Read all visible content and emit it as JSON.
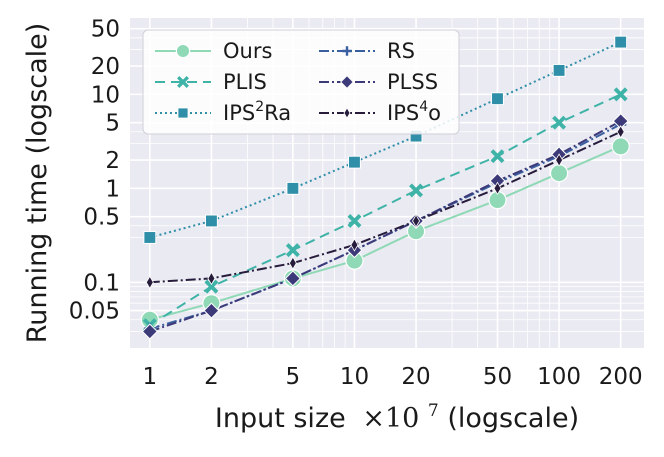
{
  "chart_data": {
    "type": "line",
    "xscale": "log",
    "yscale": "log",
    "x": [
      1,
      2,
      5,
      10,
      20,
      50,
      100,
      200
    ],
    "x_tick_labels": [
      "1",
      "2",
      "5",
      "10",
      "20",
      "50",
      "100",
      "200"
    ],
    "y_ticks": [
      0.05,
      0.1,
      0.5,
      1,
      2,
      5,
      10,
      20,
      50
    ],
    "y_tick_labels": [
      "0.05",
      "0.1",
      "0.5",
      "1",
      "2",
      "5",
      "10",
      "20",
      "50"
    ],
    "xlim": [
      0.8,
      260
    ],
    "ylim": [
      0.02,
      65
    ],
    "xlabel_main": "Input size",
    "xlabel_factor_base": "×10",
    "xlabel_factor_exp": "7",
    "xlabel_suffix": " (logscale)",
    "ylabel": "Running time (logscale)",
    "grid": true,
    "legend_position": "top-left",
    "legend_columns": 2,
    "series": [
      {
        "name": "Ours",
        "name_sup": "",
        "name_suffix": "",
        "color": "#8fd9b6",
        "dash": "",
        "marker": "circle",
        "values": [
          0.04,
          0.06,
          0.11,
          0.17,
          0.35,
          0.75,
          1.45,
          2.8
        ]
      },
      {
        "name": "PLIS",
        "name_sup": "",
        "name_suffix": "",
        "color": "#3fb3a7",
        "dash": "10,6",
        "marker": "x",
        "values": [
          0.035,
          0.09,
          0.22,
          0.45,
          0.95,
          2.2,
          5.0,
          10.0
        ]
      },
      {
        "name": "IPS",
        "name_sup": "2",
        "name_suffix": "Ra",
        "color": "#2f8fa8",
        "dash": "2,3",
        "marker": "square",
        "values": [
          0.3,
          0.45,
          1.0,
          1.9,
          3.6,
          9.0,
          18.0,
          36.0
        ]
      },
      {
        "name": "RS",
        "name_sup": "",
        "name_suffix": "",
        "color": "#3a5fa0",
        "dash": "10,3,2,3",
        "marker": "plus",
        "values": [
          0.032,
          0.05,
          0.11,
          0.22,
          0.45,
          1.15,
          2.2,
          4.8
        ]
      },
      {
        "name": "PLSS",
        "name_sup": "",
        "name_suffix": "",
        "color": "#3d3a7a",
        "dash": "10,3,2,3",
        "marker": "diamond",
        "values": [
          0.03,
          0.05,
          0.11,
          0.22,
          0.45,
          1.2,
          2.3,
          5.2
        ]
      },
      {
        "name": "IPS",
        "name_sup": "4",
        "name_suffix": "o",
        "color": "#281c3d",
        "dash": "10,3,2,3",
        "marker": "thin-diamond",
        "values": [
          0.1,
          0.11,
          0.16,
          0.25,
          0.45,
          1.0,
          2.0,
          4.0
        ]
      }
    ]
  }
}
